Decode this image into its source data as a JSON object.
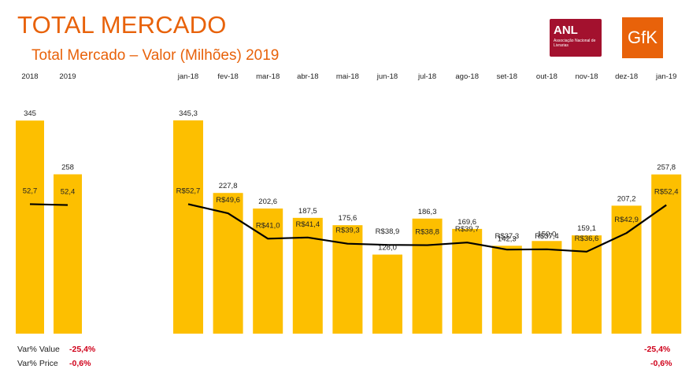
{
  "header": {
    "title": "TOTAL MERCADO",
    "subtitle": "Total Mercado – Valor (Milhões) 2019",
    "anl_logo_text": "ANL",
    "anl_logo_subtext": "Associação Nacional de Livrarias",
    "gfk_logo_text": "GfK"
  },
  "colors": {
    "bar": "#fdbf00",
    "line": "#000000",
    "title": "#e8620a",
    "negative": "#d0021b"
  },
  "chart_data": [
    {
      "type": "bar",
      "categories": [
        "2018",
        "2019"
      ],
      "series": [
        {
          "values": [
            345,
            258
          ],
          "labels": [
            "345",
            "258"
          ]
        },
        {
          "type": "line",
          "values": [
            52.7,
            52.4
          ],
          "labels": [
            "52,7",
            "52,4"
          ]
        }
      ]
    },
    {
      "type": "bar",
      "categories": [
        "jan-18",
        "fev-18",
        "mar-18",
        "abr-18",
        "mai-18",
        "jun-18",
        "jul-18",
        "ago-18",
        "set-18",
        "out-18",
        "nov-18",
        "dez-18",
        "jan-19"
      ],
      "series": [
        {
          "values": [
            345.3,
            227.8,
            202.6,
            187.5,
            175.6,
            128.0,
            186.3,
            169.6,
            142.3,
            150.0,
            159.1,
            207.2,
            257.8
          ],
          "labels": [
            "345,3",
            "227,8",
            "202,6",
            "187,5",
            "175,6",
            "128,0",
            "186,3",
            "169,6",
            "142,3",
            "150,0",
            "159,1",
            "207,2",
            "257,8"
          ]
        },
        {
          "type": "line",
          "values": [
            52.7,
            49.6,
            41.0,
            41.4,
            39.3,
            38.9,
            38.8,
            39.7,
            37.3,
            37.4,
            36.6,
            42.9,
            52.4
          ],
          "labels": [
            "R$52,7",
            "R$49,6",
            "R$41,0",
            "R$41,4",
            "R$39,3",
            "R$38,9",
            "R$38,8",
            "R$39,7",
            "R$37,3",
            "R$37,4",
            "R$36,6",
            "R$42,9",
            "R$52,4"
          ]
        }
      ]
    }
  ],
  "footer": {
    "value_label": "Var% Value",
    "price_label": "Var% Price",
    "value_left": "-25,4%",
    "price_left": "-0,6%",
    "value_right": "-25,4%",
    "price_right": "-0,6%"
  }
}
